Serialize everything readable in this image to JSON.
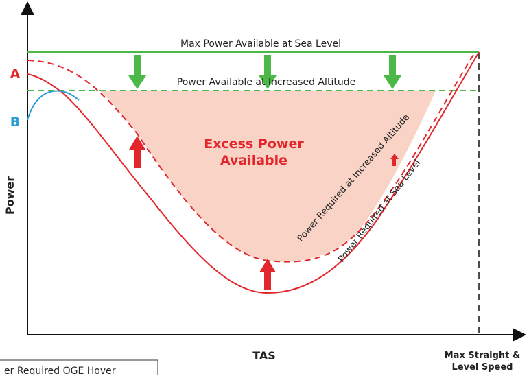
{
  "labels": {
    "max_power_sea_level": "Max Power Available at Sea Level",
    "power_increased_altitude": "Power Available at Increased Altitude",
    "excess_power": [
      "Excess Power",
      "Available"
    ],
    "required_altitude": "Power Required at Increased Altitude",
    "required_sea_level": "Power Required at Sea Level",
    "point_a": "A",
    "point_b": "B",
    "y_axis": "Power",
    "x_axis": "TAS",
    "max_speed": [
      "Max Straight &",
      "Level Speed"
    ],
    "hover_box": "er Required OGE Hover"
  }
}
